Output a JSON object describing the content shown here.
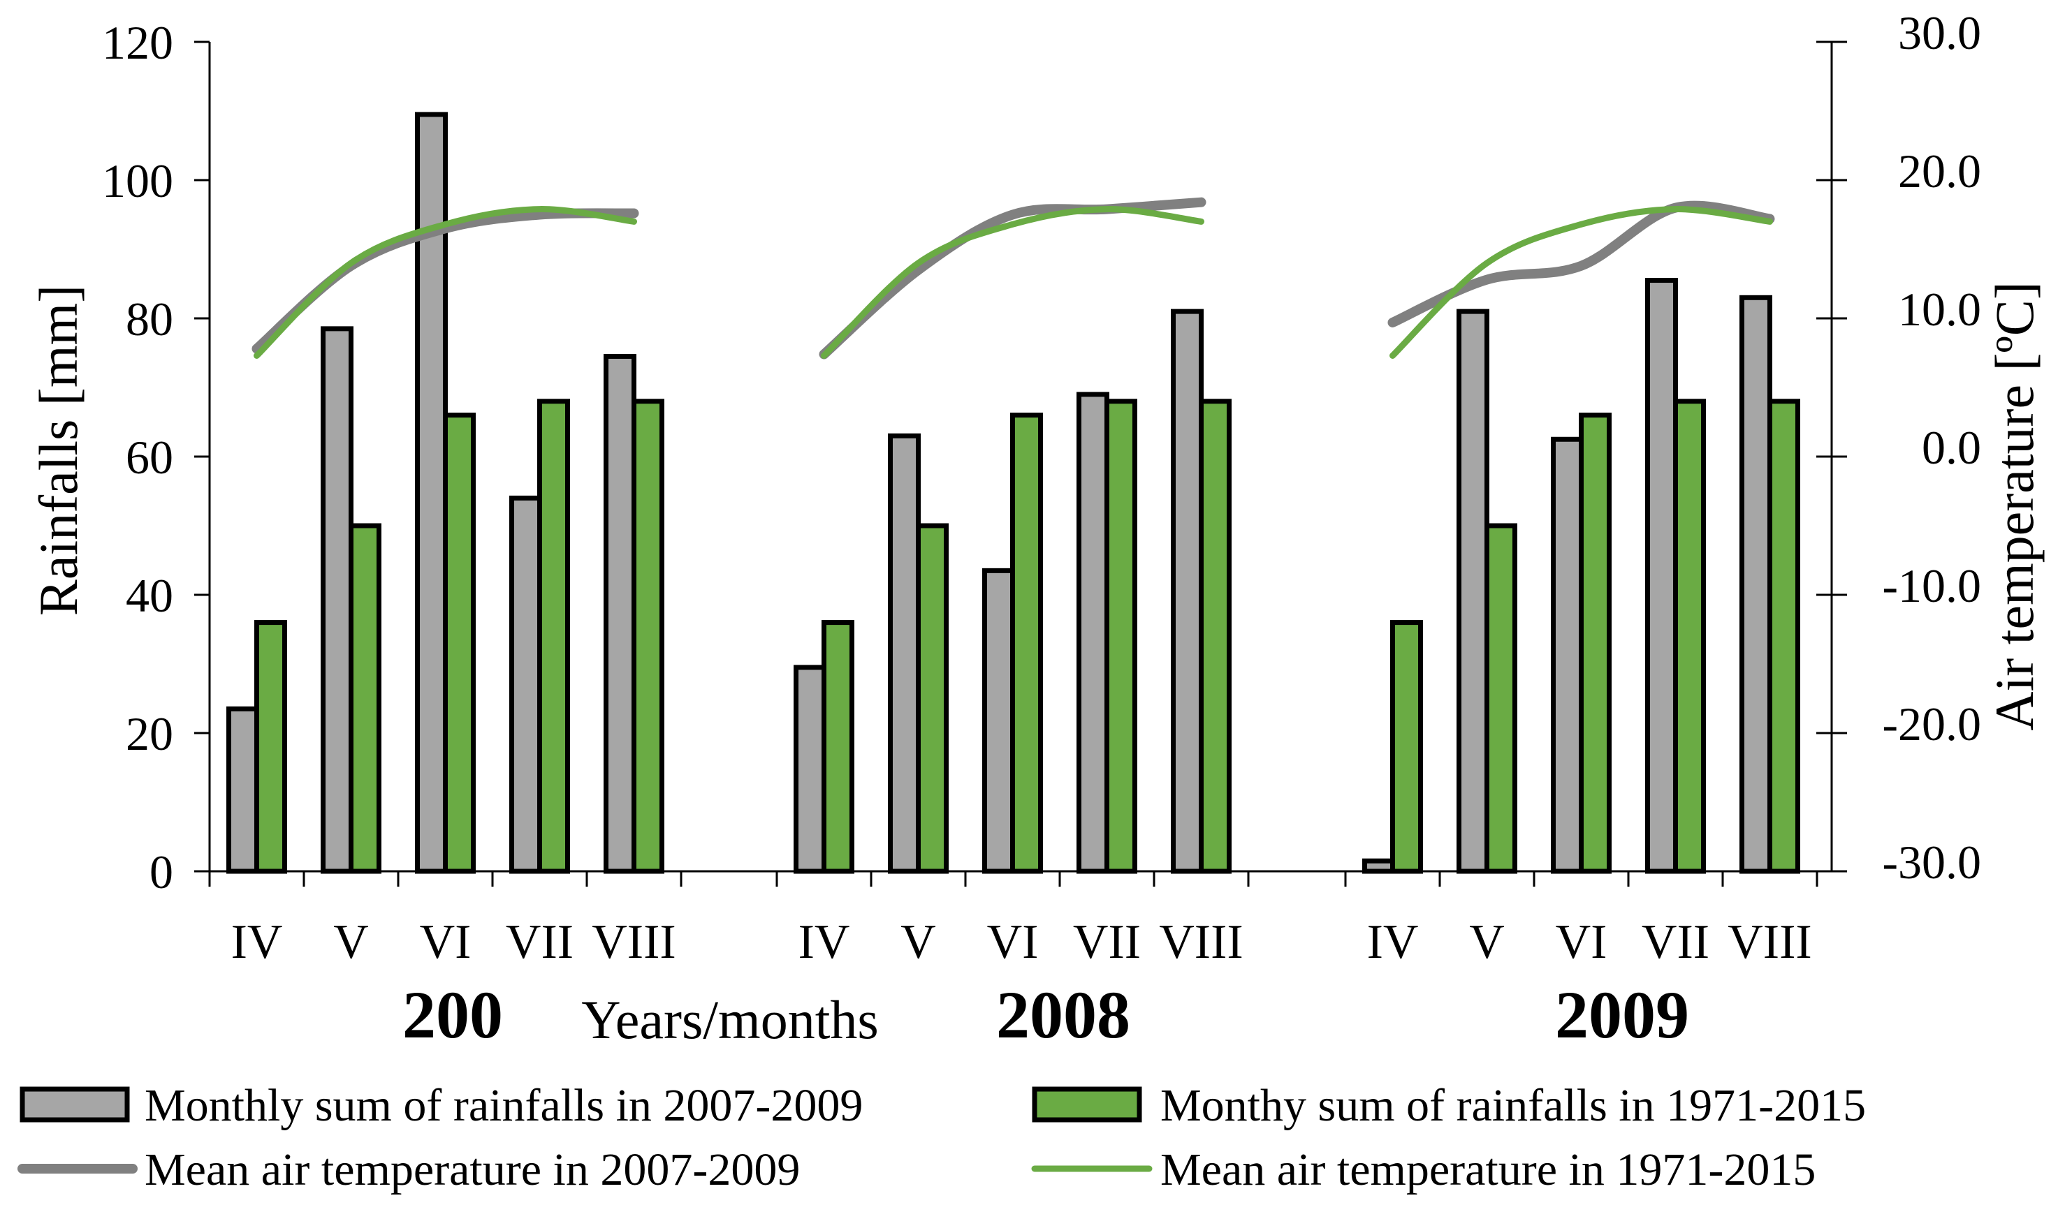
{
  "chart_data": {
    "type": "bar+line",
    "title": "",
    "xlabel": "Years/months",
    "ylabel": "Rainfalls [mm]",
    "y2label": "Air temperature [ºC]",
    "ylim": [
      0,
      120
    ],
    "y_ticks": [
      "0",
      "20",
      "40",
      "60",
      "80",
      "100",
      "120"
    ],
    "y2lim": [
      -30,
      30
    ],
    "y2_ticks": [
      "-30.0",
      "-20.0",
      "-10.0",
      "0.0",
      "10.0",
      "20.0",
      "30.0"
    ],
    "groups": [
      {
        "label": "200",
        "months": [
          "IV",
          "V",
          "VI",
          "VII",
          "VIII"
        ]
      },
      {
        "label": "2008",
        "months": [
          "IV",
          "V",
          "VI",
          "VII",
          "VIII"
        ]
      },
      {
        "label": "2009",
        "months": [
          "IV",
          "V",
          "VI",
          "VII",
          "VIII"
        ]
      }
    ],
    "series": [
      {
        "name": "Monthly sum of rainfalls in 2007-2009",
        "kind": "bar",
        "axis": "left",
        "color": "#a6a6a6",
        "values": [
          [
            23.5,
            78.5,
            109.5,
            54.0,
            74.5
          ],
          [
            29.5,
            63.0,
            43.5,
            69.0,
            81.0
          ],
          [
            1.5,
            81.0,
            62.5,
            85.5,
            83.0
          ]
        ]
      },
      {
        "name": "Monthy sum of rainfalls in 1971-2015",
        "kind": "bar",
        "axis": "left",
        "color": "#6aab44",
        "values": [
          [
            36.0,
            50.0,
            66.0,
            68.0,
            68.0
          ],
          [
            36.0,
            50.0,
            66.0,
            68.0,
            68.0
          ],
          [
            36.0,
            50.0,
            66.0,
            68.0,
            68.0
          ]
        ]
      },
      {
        "name": "Mean air temperature in 2007-2009",
        "kind": "line",
        "axis": "right",
        "color": "#808080",
        "values": [
          [
            7.8,
            13.8,
            16.5,
            17.5,
            17.6
          ],
          [
            7.4,
            13.5,
            17.5,
            17.9,
            18.4
          ],
          [
            9.7,
            12.8,
            13.8,
            18.0,
            17.2
          ]
        ]
      },
      {
        "name": "Mean air temperature in 1971-2015",
        "kind": "line",
        "axis": "right",
        "color": "#6aab44",
        "values": [
          [
            7.3,
            14.0,
            16.8,
            17.9,
            17.0
          ],
          [
            7.3,
            14.0,
            16.8,
            17.9,
            17.0
          ],
          [
            7.3,
            14.0,
            16.8,
            17.9,
            17.0
          ]
        ]
      }
    ],
    "legend_position": "bottom"
  }
}
